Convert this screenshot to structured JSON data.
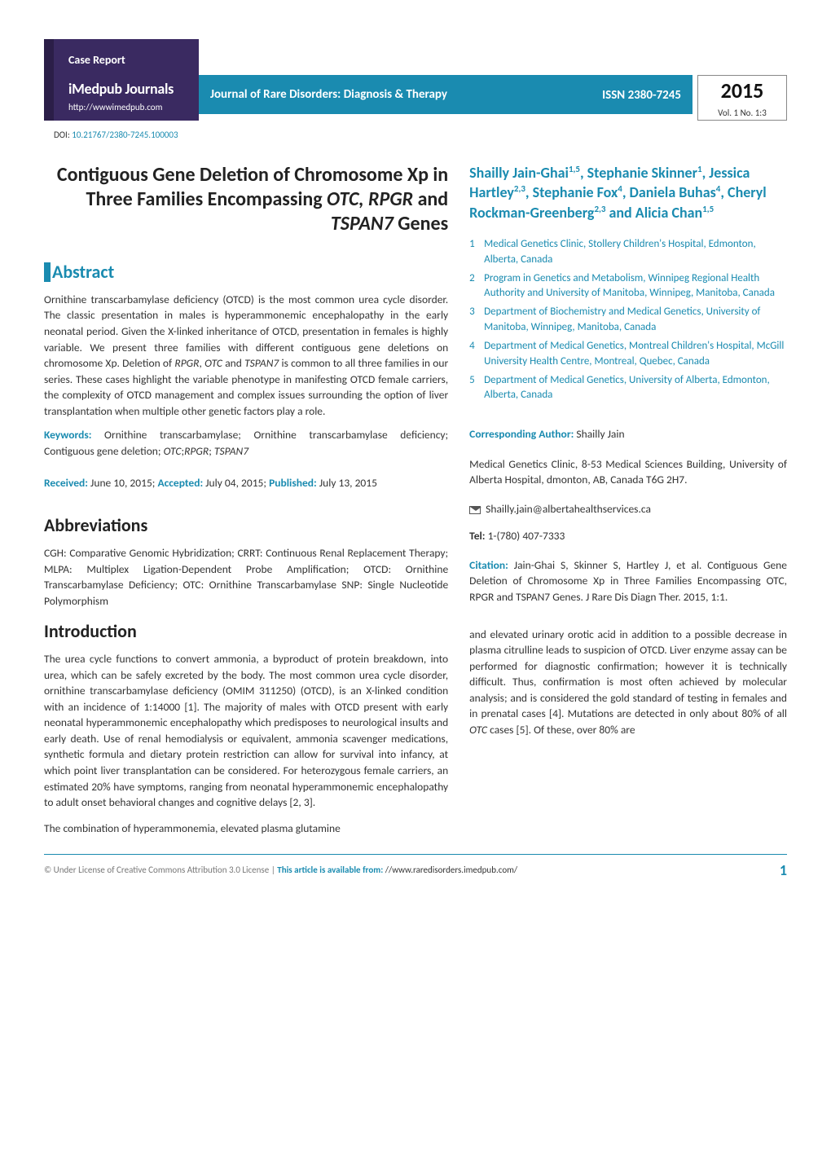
{
  "header": {
    "case_report_label": "Case Report",
    "imedpub_title": "iMedpub Journals",
    "imedpub_url": "http://wwwimedpub.com",
    "journal_name": "Journal of Rare Disorders: Diagnosis & Therapy",
    "issn": "ISSN 2380-7245",
    "year": "2015",
    "volno": "Vol. 1 No. 1:3",
    "doi_label": "DOI: ",
    "doi": "10.21767/2380-7245.100003"
  },
  "title_html": "Contiguous Gene Deletion of Chromosome Xp in Three Families Encompassing <em>OTC, RPGR</em> and <em>TSPAN7</em> Genes",
  "authors_html": "Shailly Jain-Ghai<sup>1,5</sup>, Stephanie Skinner<sup>1</sup>, Jessica Hartley<sup>2,3</sup>, Stephanie Fox<sup>4</sup>, Daniela Buhas<sup>4</sup>, Cheryl Rockman-Greenberg<sup>2,3</sup> and Alicia Chan<sup>1,5</sup>",
  "affiliations": [
    "Medical Genetics Clinic, Stollery Children's Hospital, Edmonton, Alberta, Canada",
    "Program in Genetics and Metabolism, Winnipeg Regional Health Authority and University of Manitoba, Winnipeg, Manitoba, Canada",
    "Department of Biochemistry and Medical Genetics, University of Manitoba, Winnipeg, Manitoba, Canada",
    "Department of Medical Genetics, Montreal Children's Hospital, McGill University Health Centre, Montreal, Quebec, Canada",
    "Department of Medical Genetics, University of Alberta, Edmonton, Alberta, Canada"
  ],
  "abstract": {
    "heading": "Abstract",
    "body_html": "Ornithine transcarbamylase deficiency (OTCD) is the most common urea cycle disorder. The classic presentation in males is hyperammonemic encephalopathy in the early neonatal period. Given the X-linked inheritance of OTCD, presentation in females is highly variable. We present three families with different contiguous gene deletions on chromosome Xp. Deletion of <em>RPGR</em>, <em>OTC</em> and <em>TSPAN7</em> is common to all three families in our series. These cases highlight the variable phenotype in manifesting OTCD female carriers, the complexity of OTCD management and complex issues surrounding the option of liver transplantation when multiple other genetic factors play a role.",
    "keywords_label": "Keywords:",
    "keywords_html": " Ornithine transcarbamylase; Ornithine transcarbamylase deficiency; Contiguous gene deletion; <em>OTC</em>;<em>RPGR</em>; <em>TSPAN7</em>"
  },
  "dates": {
    "received_label": "Received:",
    "received": " June 10, 2015; ",
    "accepted_label": "Accepted:",
    "accepted": " July 04, 2015; ",
    "published_label": "Published:",
    "published": "  July 13, 2015"
  },
  "abbrev": {
    "heading": "Abbreviations",
    "body": "CGH: Comparative Genomic Hybridization; CRRT: Continuous Renal Replacement Therapy; MLPA: Multiplex Ligation-Dependent Probe Amplification; OTCD: Ornithine Transcarbamylase Deficiency; OTC: Ornithine Transcarbamylase SNP: Single Nucleotide Polymorphism"
  },
  "intro": {
    "heading": "Introduction",
    "para1": "The urea cycle functions to convert ammonia, a byproduct of protein breakdown, into urea, which can be safely excreted by the body. The most common urea cycle disorder, ornithine transcarbamylase deficiency (OMIM 311250) (OTCD), is an X-linked condition with an incidence of 1:14000 [1]. The majority of males with OTCD present with early neonatal hyperammonemic encephalopathy which predisposes to neurological insults and early death. Use of renal hemodialysis or equivalent, ammonia scavenger medications, synthetic formula and dietary protein restriction can allow for survival into infancy, at which point liver transplantation can be considered. For heterozygous female carriers, an estimated 20% have symptoms, ranging from neonatal hyperammonemic encephalopathy to adult onset behavioral changes and cognitive delays [2, 3].",
    "para2": "The combination of hyperammonemia, elevated plasma glutamine"
  },
  "right_col_flow_html": "and elevated urinary orotic acid in addition to a possible decrease in plasma citrulline leads to suspicion of OTCD. Liver enzyme assay can be performed for diagnostic confirmation; however it is technically difficult. Thus, confirmation is most often achieved by molecular analysis; and is considered the gold standard of testing in females and in prenatal cases [4]. Mutations are detected in only about 80% of all <em>OTC</em> cases [5]. Of these, over 80% are",
  "corresponding": {
    "label": "Corresponding Author:",
    "name": " Shailly Jain",
    "address": "Medical Genetics Clinic, 8-53 Medical Sciences Building, University of Alberta Hospital, dmonton, AB, Canada T6G 2H7.",
    "email": "Shailly.jain@albertahealthservices.ca",
    "tel_label": "Tel:",
    "tel": " 1-(780) 407-7333"
  },
  "citation": {
    "label": "Citation:",
    "text": " Jain-Ghai S, Skinner S, Hartley J, et al. Contiguous Gene Deletion of Chromosome Xp in Three Families Encompassing OTC, RPGR and TSPAN7 Genes. J Rare Dis Diagn Ther. 2015, 1:1."
  },
  "footer": {
    "license": "© Under License of Creative Commons Attribution 3.0 License | ",
    "avail_label": "This article is available from: ",
    "avail_url": "//www.raredisorders.imedpub.com/",
    "page": "1"
  },
  "colors": {
    "purple_dark": "#2b1e48",
    "purple": "#3a2a61",
    "teal": "#1a8bb0",
    "text": "#333333",
    "bg": "#ffffff"
  }
}
